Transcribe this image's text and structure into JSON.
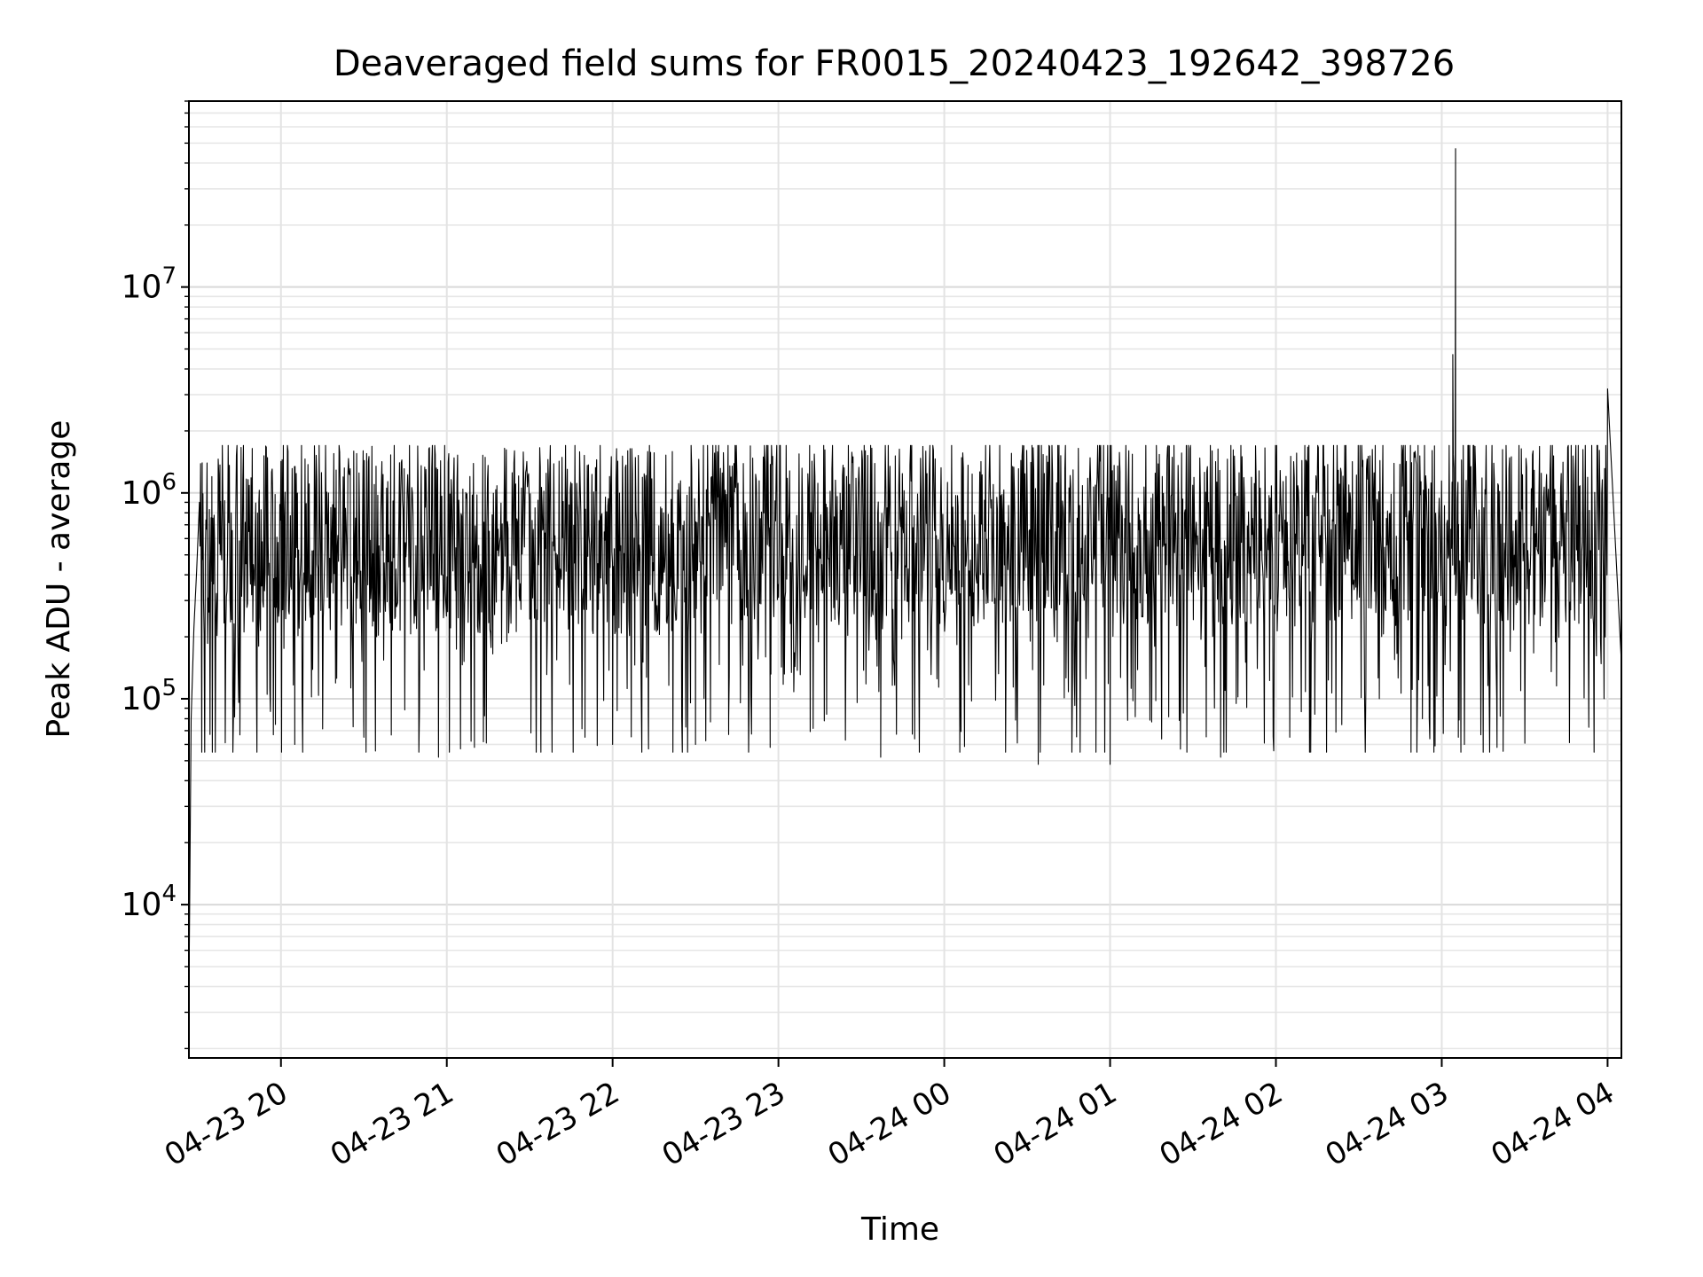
{
  "chart_data": {
    "type": "line",
    "title": "Deaveraged field sums for FR0015_20240423_192642_398726",
    "xlabel": "Time",
    "ylabel": "Peak ADU - average",
    "xscale": "time",
    "yscale": "log",
    "xlim": [
      "2024-04-23 19:26:42",
      "2024-04-24 04:05:00"
    ],
    "ylim": [
      1800,
      80000000
    ],
    "grid": "on (major and minor, both axes)",
    "legend": "none",
    "x_ticks": [
      {
        "time": "2024-04-23 20:00",
        "label": "04-23 20"
      },
      {
        "time": "2024-04-23 21:00",
        "label": "04-23 21"
      },
      {
        "time": "2024-04-23 22:00",
        "label": "04-23 22"
      },
      {
        "time": "2024-04-23 23:00",
        "label": "04-23 23"
      },
      {
        "time": "2024-04-24 00:00",
        "label": "04-24 00"
      },
      {
        "time": "2024-04-24 01:00",
        "label": "04-24 01"
      },
      {
        "time": "2024-04-24 02:00",
        "label": "04-24 02"
      },
      {
        "time": "2024-04-24 03:00",
        "label": "04-24 03"
      },
      {
        "time": "2024-04-24 04:00",
        "label": "04-24 04"
      }
    ],
    "y_ticks": [
      {
        "value": 10000,
        "base": "10",
        "exp": "4"
      },
      {
        "value": 100000,
        "base": "10",
        "exp": "5"
      },
      {
        "value": 1000000,
        "base": "10",
        "exp": "6"
      },
      {
        "value": 10000000,
        "base": "10",
        "exp": "7"
      }
    ],
    "series": [
      {
        "color": "#000000",
        "points": [
          [
            "2024-04-23 19:26:42",
            3500
          ],
          [
            "2024-04-23 19:27:30",
            80000
          ],
          [
            "2024-04-23 19:28:30",
            220000
          ],
          [
            "2024-04-23 19:29:30",
            420000
          ],
          [
            "2024-04-23 19:30:30",
            900000
          ],
          [
            "2024-04-23 19:31:30",
            1400000
          ],
          [
            "2024-04-23 19:33:00",
            700000
          ],
          [
            "2024-04-23 19:35:00",
            1200000
          ],
          [
            "2024-04-23 19:38:00",
            500000
          ],
          [
            "2024-04-23 19:42:00",
            800000
          ],
          [
            "2024-04-23 19:47:00",
            550000
          ],
          [
            "2024-04-23 19:52:00",
            900000
          ],
          [
            "2024-04-23 19:55:00",
            105000
          ],
          [
            "2024-04-23 19:58:00",
            75000
          ],
          [
            "2024-04-23 20:05:00",
            60000
          ],
          [
            "2024-04-23 20:30:00",
            65000
          ],
          [
            "2024-04-23 20:57:00",
            52000
          ],
          [
            "2024-04-23 21:10:00",
            58000
          ],
          [
            "2024-04-23 21:34:00",
            70000
          ],
          [
            "2024-04-23 21:50:00",
            65000
          ],
          [
            "2024-04-23 22:00:00",
            60000
          ],
          [
            "2024-04-23 22:13:00",
            57000
          ],
          [
            "2024-04-23 22:30:00",
            60000
          ],
          [
            "2024-04-23 22:42:00",
            80000
          ],
          [
            "2024-04-23 22:57:00",
            58000
          ],
          [
            "2024-04-23 23:37:00",
            52000
          ],
          [
            "2024-04-24 00:34:00",
            48000
          ],
          [
            "2024-04-24 01:00:00",
            48000
          ],
          [
            "2024-04-24 01:40:00",
            52000
          ],
          [
            "2024-04-24 02:05:00",
            65000
          ],
          [
            "2024-04-24 02:53:00",
            80000
          ],
          [
            "2024-04-24 03:04:00",
            4700000
          ],
          [
            "2024-04-24 03:05:00",
            47000000
          ],
          [
            "2024-04-24 03:06:00",
            65000
          ],
          [
            "2024-04-24 03:20:00",
            58000
          ],
          [
            "2024-04-24 04:00:00",
            3200000
          ],
          [
            "2024-04-24 04:05:00",
            150000
          ]
        ]
      }
    ]
  }
}
